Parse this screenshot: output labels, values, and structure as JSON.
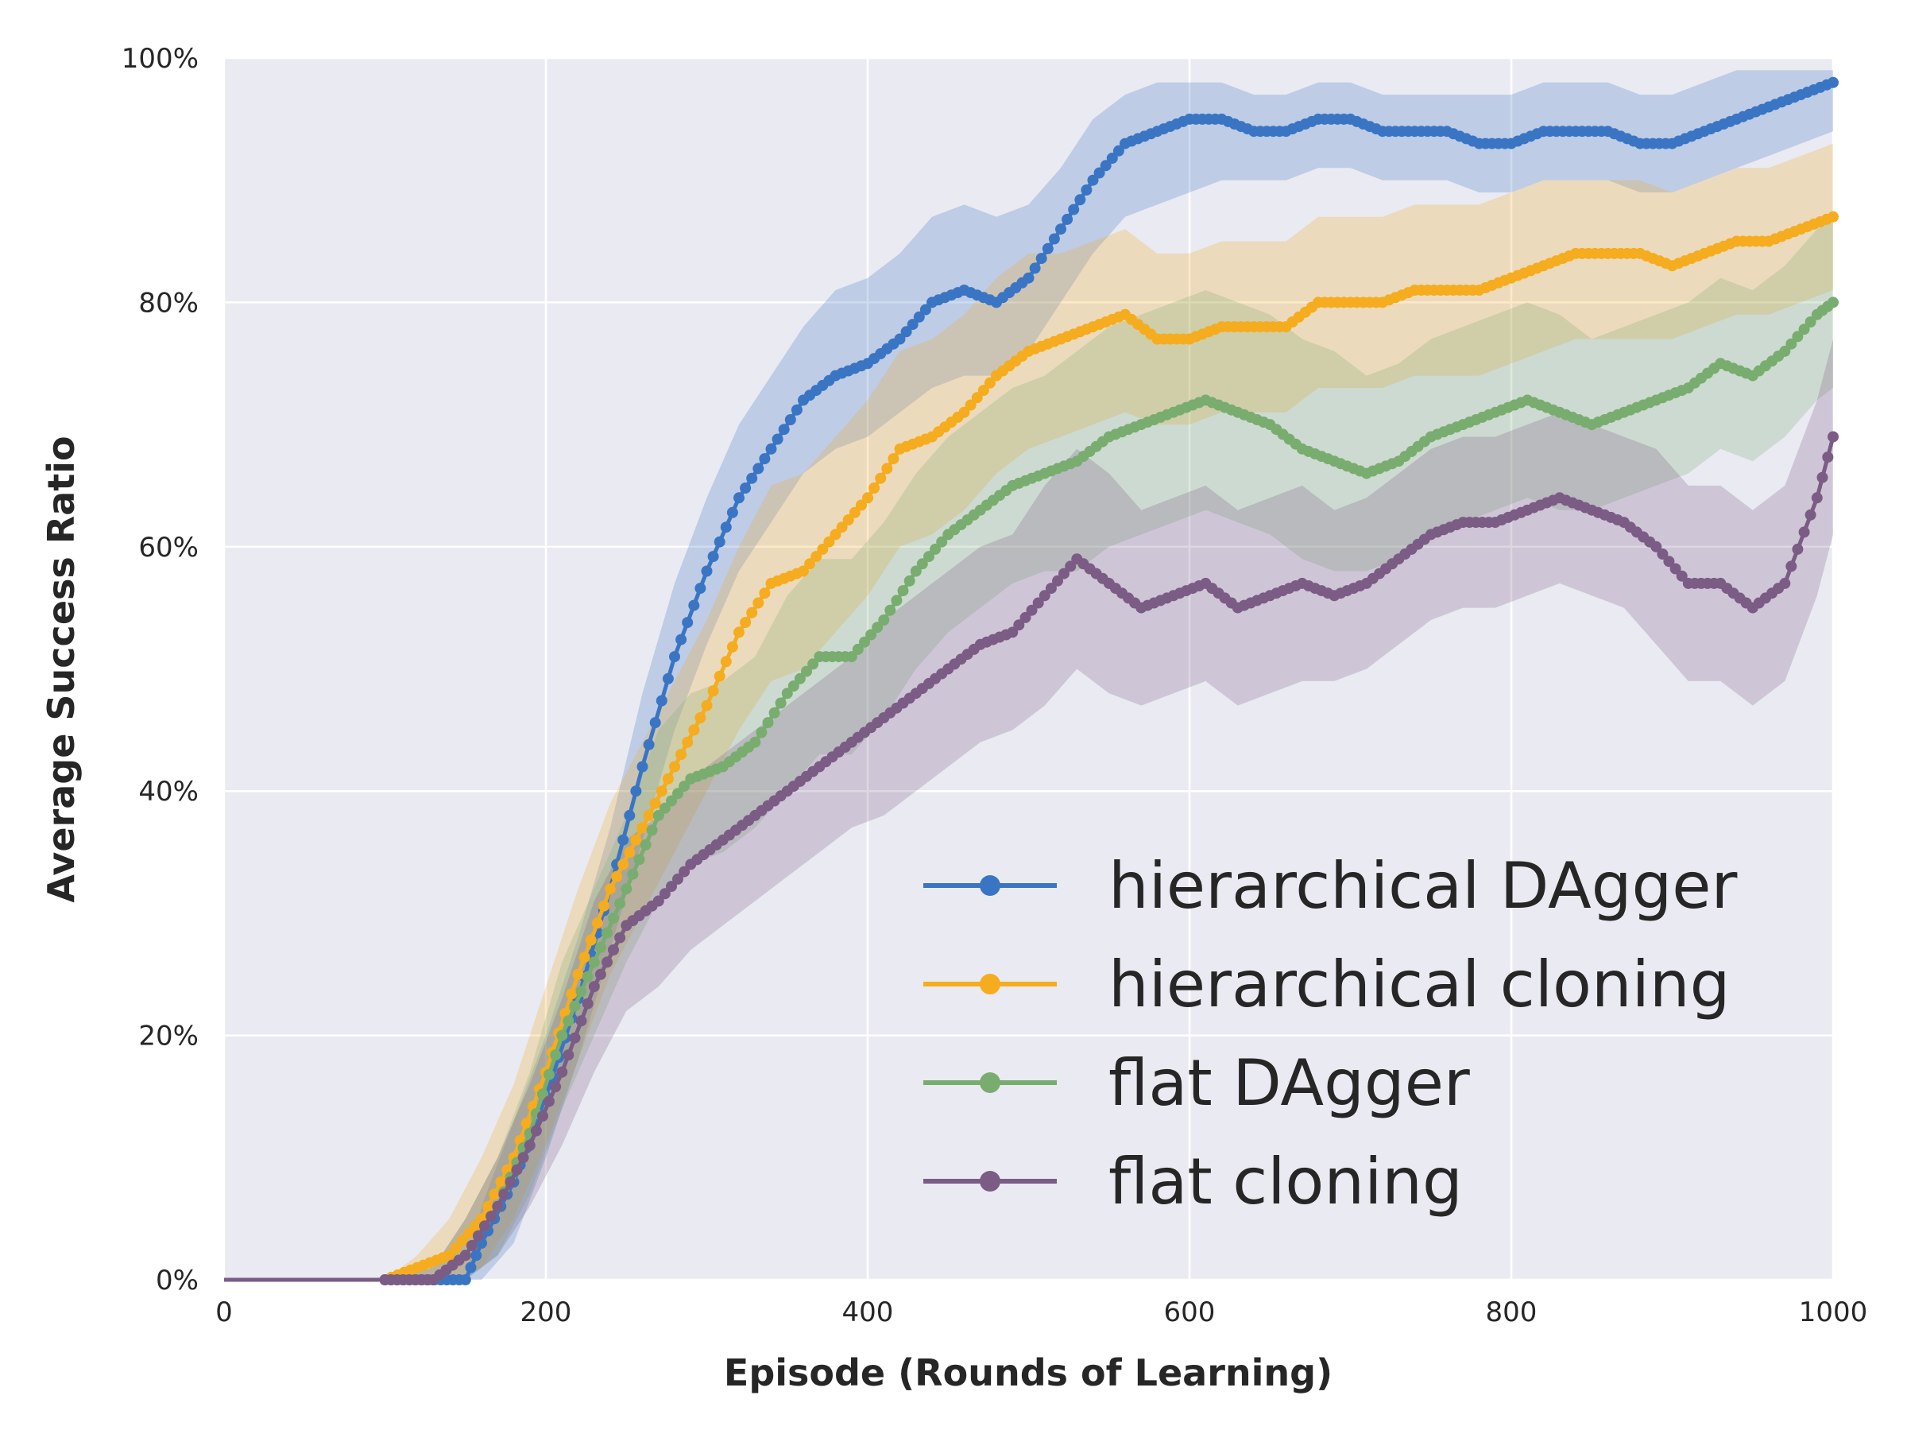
{
  "chart_data": {
    "type": "line",
    "title": "",
    "xlabel": "Episode (Rounds of Learning)",
    "ylabel": "Average Success Ratio",
    "xlim": [
      0,
      1000
    ],
    "ylim": [
      0,
      100
    ],
    "x_ticks": [
      "0",
      "200",
      "400",
      "600",
      "800",
      "1000"
    ],
    "x_tick_values": [
      0,
      200,
      400,
      600,
      800,
      1000
    ],
    "y_ticks": [
      "0%",
      "20%",
      "40%",
      "60%",
      "80%",
      "100%"
    ],
    "y_tick_values": [
      0,
      20,
      40,
      60,
      80,
      100
    ],
    "grid": true,
    "legend_position": "lower-right",
    "shaded_band": "variability band around each series",
    "series": [
      {
        "name": "hierarchical DAgger",
        "color": "#3a75c4",
        "x": [
          0,
          100,
          150,
          160,
          180,
          200,
          220,
          240,
          260,
          280,
          300,
          320,
          340,
          360,
          380,
          400,
          420,
          440,
          460,
          480,
          500,
          520,
          540,
          560,
          580,
          600,
          620,
          640,
          660,
          680,
          700,
          720,
          740,
          760,
          780,
          800,
          820,
          840,
          860,
          880,
          900,
          920,
          940,
          960,
          980,
          1000
        ],
        "y": [
          0,
          0,
          0,
          3,
          8,
          15,
          23,
          32,
          42,
          51,
          58,
          64,
          68,
          72,
          74,
          75,
          77,
          80,
          81,
          80,
          82,
          86,
          90,
          93,
          94,
          95,
          95,
          94,
          94,
          95,
          95,
          94,
          94,
          94,
          93,
          93,
          94,
          94,
          94,
          93,
          93,
          94,
          95,
          96,
          97,
          98
        ],
        "lower": [
          0,
          0,
          0,
          0,
          3,
          10,
          18,
          27,
          36,
          45,
          52,
          58,
          62,
          66,
          68,
          69,
          71,
          73,
          74,
          74,
          76,
          80,
          84,
          87,
          88,
          89,
          90,
          90,
          90,
          91,
          91,
          90,
          90,
          90,
          89,
          89,
          90,
          90,
          90,
          89,
          89,
          90,
          91,
          92,
          93,
          94
        ],
        "upper": [
          0,
          0,
          0,
          6,
          13,
          20,
          28,
          37,
          48,
          57,
          64,
          70,
          74,
          78,
          81,
          82,
          84,
          87,
          88,
          87,
          88,
          91,
          95,
          97,
          98,
          98,
          98,
          97,
          97,
          98,
          98,
          97,
          97,
          97,
          97,
          97,
          98,
          98,
          98,
          97,
          97,
          98,
          99,
          99,
          99,
          99
        ]
      },
      {
        "name": "hierarchical cloning",
        "color": "#f5ac1e",
        "x": [
          0,
          100,
          120,
          140,
          160,
          180,
          200,
          220,
          240,
          260,
          280,
          300,
          320,
          340,
          360,
          380,
          400,
          420,
          440,
          460,
          480,
          500,
          520,
          540,
          560,
          580,
          600,
          620,
          640,
          660,
          680,
          700,
          720,
          740,
          760,
          780,
          800,
          820,
          840,
          860,
          880,
          900,
          920,
          940,
          960,
          980,
          1000
        ],
        "y": [
          0,
          0,
          1,
          2,
          5,
          10,
          17,
          25,
          32,
          37,
          42,
          47,
          53,
          57,
          58,
          61,
          64,
          68,
          69,
          71,
          74,
          76,
          77,
          78,
          79,
          77,
          77,
          78,
          78,
          78,
          80,
          80,
          80,
          81,
          81,
          81,
          82,
          83,
          84,
          84,
          84,
          83,
          84,
          85,
          85,
          86,
          87
        ],
        "lower": [
          0,
          0,
          0,
          0,
          1,
          5,
          11,
          18,
          25,
          30,
          35,
          40,
          45,
          49,
          50,
          53,
          56,
          60,
          61,
          63,
          66,
          68,
          69,
          70,
          71,
          70,
          70,
          71,
          71,
          71,
          73,
          73,
          73,
          74,
          74,
          74,
          75,
          76,
          77,
          77,
          77,
          77,
          78,
          79,
          79,
          80,
          81
        ],
        "upper": [
          0,
          0,
          2,
          5,
          10,
          16,
          24,
          32,
          39,
          44,
          49,
          54,
          60,
          65,
          66,
          69,
          72,
          76,
          77,
          79,
          82,
          84,
          84,
          85,
          86,
          84,
          84,
          85,
          85,
          85,
          87,
          87,
          87,
          88,
          88,
          88,
          89,
          90,
          90,
          90,
          90,
          89,
          90,
          91,
          91,
          92,
          93
        ]
      },
      {
        "name": "flat DAgger",
        "color": "#78ad6f",
        "x": [
          0,
          100,
          130,
          150,
          170,
          190,
          210,
          230,
          250,
          270,
          290,
          310,
          330,
          350,
          370,
          390,
          410,
          430,
          450,
          470,
          490,
          510,
          530,
          550,
          570,
          590,
          610,
          630,
          650,
          670,
          690,
          710,
          730,
          750,
          770,
          790,
          810,
          830,
          850,
          870,
          890,
          910,
          930,
          950,
          970,
          990,
          1000
        ],
        "y": [
          0,
          0,
          0,
          2,
          6,
          12,
          20,
          26,
          32,
          38,
          41,
          42,
          44,
          48,
          51,
          51,
          54,
          58,
          61,
          63,
          65,
          66,
          67,
          69,
          70,
          71,
          72,
          71,
          70,
          68,
          67,
          66,
          67,
          69,
          70,
          71,
          72,
          71,
          70,
          71,
          72,
          73,
          75,
          74,
          76,
          79,
          80
        ],
        "lower": [
          0,
          0,
          0,
          0,
          2,
          7,
          14,
          20,
          26,
          31,
          34,
          35,
          37,
          40,
          43,
          43,
          46,
          50,
          53,
          55,
          57,
          58,
          58,
          60,
          61,
          62,
          63,
          62,
          61,
          59,
          58,
          58,
          59,
          61,
          62,
          63,
          64,
          63,
          63,
          64,
          65,
          66,
          68,
          67,
          69,
          72,
          73
        ],
        "upper": [
          0,
          0,
          1,
          5,
          10,
          17,
          26,
          32,
          38,
          45,
          48,
          49,
          51,
          56,
          59,
          59,
          62,
          66,
          69,
          71,
          73,
          74,
          76,
          78,
          79,
          80,
          81,
          80,
          79,
          77,
          76,
          74,
          75,
          77,
          78,
          79,
          80,
          79,
          77,
          78,
          79,
          80,
          82,
          81,
          83,
          86,
          87
        ]
      },
      {
        "name": "flat cloning",
        "color": "#7b5c85",
        "x": [
          0,
          100,
          130,
          150,
          170,
          190,
          210,
          230,
          250,
          270,
          290,
          310,
          330,
          350,
          370,
          390,
          410,
          430,
          450,
          470,
          490,
          510,
          530,
          550,
          570,
          590,
          610,
          630,
          650,
          670,
          690,
          710,
          730,
          750,
          770,
          790,
          810,
          830,
          850,
          870,
          890,
          910,
          930,
          950,
          970,
          990,
          1000
        ],
        "y": [
          0,
          0,
          0,
          2,
          6,
          11,
          17,
          24,
          29,
          31,
          34,
          36,
          38,
          40,
          42,
          44,
          46,
          48,
          50,
          52,
          53,
          56,
          59,
          57,
          55,
          56,
          57,
          55,
          56,
          57,
          56,
          57,
          59,
          61,
          62,
          62,
          63,
          64,
          63,
          62,
          60,
          57,
          57,
          55,
          57,
          64,
          69
        ],
        "lower": [
          0,
          0,
          0,
          0,
          2,
          6,
          11,
          17,
          22,
          24,
          27,
          29,
          31,
          33,
          35,
          37,
          38,
          40,
          42,
          44,
          45,
          47,
          50,
          48,
          47,
          48,
          49,
          47,
          48,
          49,
          49,
          50,
          52,
          54,
          55,
          55,
          56,
          57,
          56,
          55,
          52,
          49,
          49,
          47,
          49,
          56,
          61
        ],
        "upper": [
          0,
          0,
          1,
          5,
          10,
          16,
          23,
          31,
          36,
          38,
          41,
          43,
          45,
          47,
          49,
          51,
          54,
          56,
          58,
          60,
          61,
          65,
          68,
          66,
          63,
          64,
          65,
          63,
          64,
          65,
          63,
          64,
          66,
          68,
          69,
          69,
          70,
          71,
          70,
          69,
          68,
          65,
          65,
          63,
          65,
          72,
          77
        ]
      }
    ]
  }
}
